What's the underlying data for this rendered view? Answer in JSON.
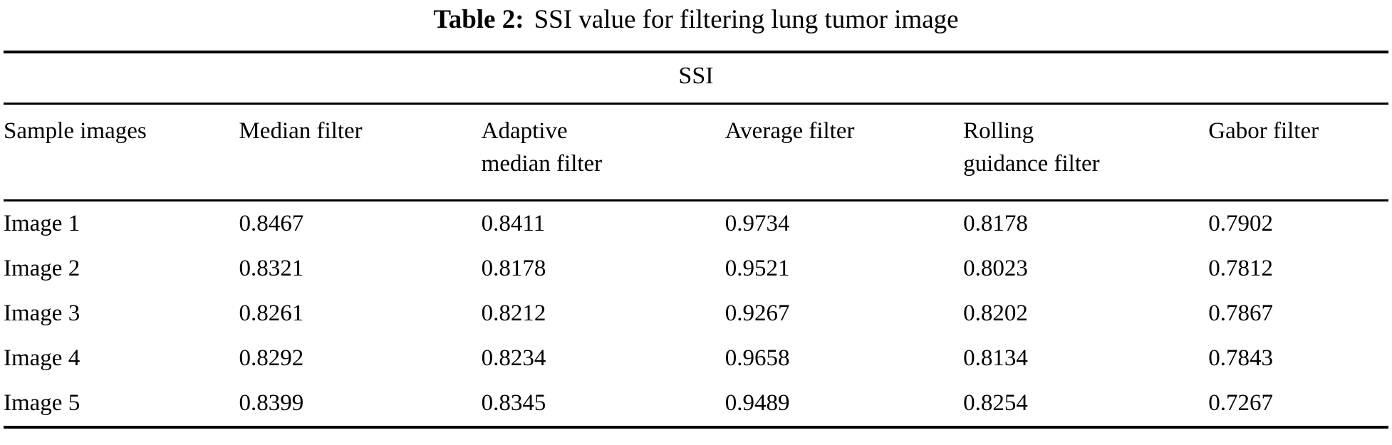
{
  "caption": {
    "label": "Table 2:",
    "text": "SSI value for filtering lung tumor image"
  },
  "table": {
    "span_header": "SSI",
    "columns": [
      "Sample images",
      "Median filter",
      "Adaptive\nmedian filter",
      "Average filter",
      "Rolling\nguidance filter",
      "Gabor filter"
    ],
    "rows": [
      {
        "label": "Image 1",
        "values": [
          "0.8467",
          "0.8411",
          "0.9734",
          "0.8178",
          "0.7902"
        ]
      },
      {
        "label": "Image 2",
        "values": [
          "0.8321",
          "0.8178",
          "0.9521",
          "0.8023",
          "0.7812"
        ]
      },
      {
        "label": "Image 3",
        "values": [
          "0.8261",
          "0.8212",
          "0.9267",
          "0.8202",
          "0.7867"
        ]
      },
      {
        "label": "Image 4",
        "values": [
          "0.8292",
          "0.8234",
          "0.9658",
          "0.8134",
          "0.7843"
        ]
      },
      {
        "label": "Image 5",
        "values": [
          "0.8399",
          "0.8345",
          "0.9489",
          "0.8254",
          "0.7267"
        ]
      }
    ]
  },
  "chart_data": {
    "type": "table",
    "title": "Table 2: SSI value for filtering lung tumor image",
    "group_header": "SSI",
    "columns": [
      "Sample images",
      "Median filter",
      "Adaptive median filter",
      "Average filter",
      "Rolling guidance filter",
      "Gabor filter"
    ],
    "rows": [
      [
        "Image 1",
        0.8467,
        0.8411,
        0.9734,
        0.8178,
        0.7902
      ],
      [
        "Image 2",
        0.8321,
        0.8178,
        0.9521,
        0.8023,
        0.7812
      ],
      [
        "Image 3",
        0.8261,
        0.8212,
        0.9267,
        0.8202,
        0.7867
      ],
      [
        "Image 4",
        0.8292,
        0.8234,
        0.9658,
        0.8134,
        0.7843
      ],
      [
        "Image 5",
        0.8399,
        0.8345,
        0.9489,
        0.8254,
        0.7267
      ]
    ]
  }
}
